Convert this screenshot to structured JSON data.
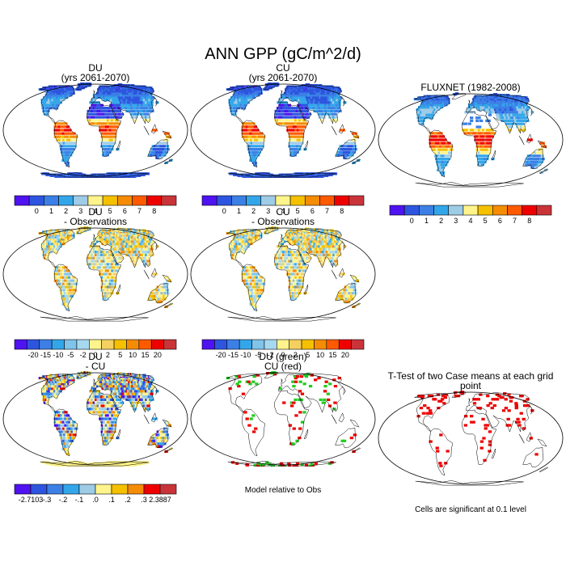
{
  "title": "ANN GPP (gC/m^2/d)",
  "panels": [
    {
      "id": "du",
      "col": 0,
      "row": 0,
      "title": [
        "DU",
        "(yrs 2061-2070)"
      ],
      "kind": "abs",
      "colorbar": "abs"
    },
    {
      "id": "cu",
      "col": 1,
      "row": 0,
      "title": [
        "CU",
        "(yrs 2061-2070)"
      ],
      "kind": "abs",
      "colorbar": "abs"
    },
    {
      "id": "fluxnet",
      "col": 2,
      "row": 0,
      "title": [
        "FLUXNET (1982-2008)"
      ],
      "kind": "obs",
      "colorbar": "abs"
    },
    {
      "id": "du_obs",
      "col": 0,
      "row": 1,
      "title": [
        "DU",
        "- Observations"
      ],
      "kind": "diff",
      "colorbar": "diff"
    },
    {
      "id": "cu_obs",
      "col": 1,
      "row": 1,
      "title": [
        "CU",
        "- Observations"
      ],
      "kind": "diff",
      "colorbar": "diff"
    },
    {
      "id": "du_cu",
      "col": 0,
      "row": 2,
      "title": [
        "DU",
        "- CU"
      ],
      "kind": "dcu",
      "colorbar": "dcu"
    },
    {
      "id": "green_red",
      "col": 1,
      "row": 2,
      "title": [
        "DU (green)",
        "CU (red)"
      ],
      "kind": "gr",
      "note": "Model relative to Obs"
    },
    {
      "id": "ttest",
      "col": 2,
      "row": 2,
      "title": [
        "T-Test of two Case means at each grid point"
      ],
      "kind": "tt",
      "note": "Cells are significant at 0.1 level"
    }
  ],
  "colorbars": {
    "abs": {
      "labels": [
        "0",
        "1",
        "2",
        "3",
        "4",
        "5",
        "6",
        "7",
        "8"
      ],
      "colors": [
        "#4f12f0",
        "#2d55df",
        "#3c80e6",
        "#33a6ea",
        "#9ecbe6",
        "#fff48b",
        "#f5c000",
        "#f58c06",
        "#ff5a00",
        "#ef0000",
        "#c93439"
      ]
    },
    "diff": {
      "labels": [
        "-20",
        "-15",
        "-10",
        "-5",
        "-2",
        "0",
        "2",
        "5",
        "10",
        "15",
        "20"
      ],
      "colors": [
        "#4f12f0",
        "#2d55df",
        "#3c80e6",
        "#33a6ea",
        "#80c4ea",
        "#a6d9f0",
        "#fff48b",
        "#f5d060",
        "#f5c000",
        "#f58c06",
        "#ff5a00",
        "#ef0000",
        "#c93439"
      ]
    },
    "dcu": {
      "labels": [
        "-2.7103",
        "-.3",
        "-.2",
        "-.1",
        ".0",
        ".1",
        ".2",
        ".3",
        "2.3887"
      ],
      "colors": [
        "#4f12f0",
        "#2d55df",
        "#3c80e6",
        "#33a6ea",
        "#9ecbe6",
        "#fff48b",
        "#f5c000",
        "#f58c06",
        "#ef0000",
        "#c93439"
      ]
    }
  },
  "chart_data": {
    "type": "heatmap",
    "projection": "Robinson",
    "fields": [
      "DU (yrs 2061-2070)",
      "CU (yrs 2061-2070)",
      "FLUXNET (1982-2008)",
      "DU - Observations",
      "CU - Observations",
      "DU - CU",
      "DU (green) CU (red)",
      "T-Test of two Case means at each grid point"
    ]
  }
}
